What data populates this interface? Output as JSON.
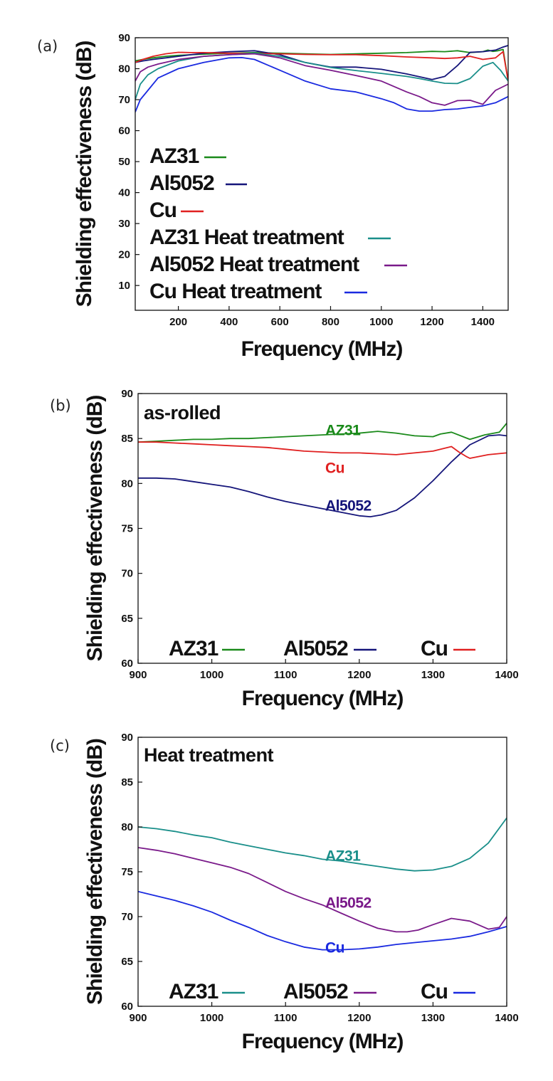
{
  "chart_data": [
    {
      "type": "line",
      "panel_label": "(a)",
      "title": "",
      "xlabel": "Frequency (MHz)",
      "ylabel": "Shielding effectiveness (dB)",
      "xlim": [
        30,
        1500
      ],
      "ylim": [
        2,
        90
      ],
      "xticks": [
        200,
        400,
        600,
        800,
        1000,
        1200,
        1400
      ],
      "yticks": [
        10,
        20,
        30,
        40,
        50,
        60,
        70,
        80,
        90
      ],
      "grid": false,
      "legend_position": "left",
      "series": [
        {
          "name": "AZ31",
          "color": "#1a8a1a",
          "x": [
            30,
            60,
            100,
            150,
            200,
            250,
            300,
            400,
            500,
            600,
            700,
            800,
            900,
            1000,
            1100,
            1200,
            1250,
            1300,
            1350,
            1400,
            1420,
            1440,
            1460,
            1480,
            1500
          ],
          "y": [
            82.5,
            83,
            83.5,
            84,
            84.3,
            84.5,
            84.7,
            85,
            85.2,
            85,
            84.8,
            84.6,
            84.8,
            85,
            85.2,
            85.6,
            85.5,
            85.8,
            85.2,
            85.5,
            86,
            85.6,
            85.8,
            86.2,
            76
          ]
        },
        {
          "name": "Al5052",
          "color": "#15157a",
          "x": [
            30,
            60,
            100,
            150,
            200,
            250,
            300,
            400,
            500,
            600,
            700,
            800,
            900,
            1000,
            1100,
            1200,
            1250,
            1300,
            1350,
            1400,
            1450,
            1480,
            1500
          ],
          "y": [
            82,
            82.5,
            83,
            83.5,
            84,
            84.5,
            85,
            85.5,
            85.8,
            84.5,
            82,
            80.5,
            80.5,
            79.8,
            78.3,
            76.5,
            77.5,
            81,
            85.3,
            85.5,
            86,
            87,
            87.5
          ]
        },
        {
          "name": "Cu",
          "color": "#e02020",
          "x": [
            30,
            60,
            100,
            150,
            200,
            250,
            300,
            400,
            500,
            600,
            700,
            800,
            900,
            1000,
            1100,
            1200,
            1250,
            1300,
            1350,
            1400,
            1450,
            1480,
            1500
          ],
          "y": [
            82,
            83,
            84,
            84.8,
            85.3,
            85.2,
            85.2,
            85,
            84.9,
            84.8,
            84.6,
            84.5,
            84.5,
            84.2,
            83.8,
            83.5,
            83.3,
            83.5,
            84,
            83,
            83.5,
            85.5,
            76
          ]
        },
        {
          "name": "AZ31 Heat treatment",
          "color": "#1a8f8a",
          "x": [
            30,
            50,
            80,
            120,
            200,
            300,
            400,
            500,
            600,
            700,
            800,
            900,
            1000,
            1100,
            1150,
            1200,
            1250,
            1300,
            1350,
            1400,
            1440,
            1470,
            1500
          ],
          "y": [
            70,
            75,
            78,
            80,
            82.5,
            84,
            84.5,
            85,
            84,
            82,
            80.4,
            79.4,
            78.5,
            77.5,
            76.8,
            76,
            75.3,
            75.2,
            76.8,
            80.8,
            82,
            79.5,
            76
          ]
        },
        {
          "name": "Al5052 Heat treatment",
          "color": "#7a1a8a",
          "x": [
            30,
            50,
            80,
            120,
            200,
            300,
            400,
            500,
            600,
            700,
            800,
            900,
            1000,
            1100,
            1150,
            1200,
            1250,
            1300,
            1350,
            1400,
            1450,
            1500
          ],
          "y": [
            76,
            79,
            80.5,
            81.5,
            83,
            84,
            84.5,
            84.8,
            83.5,
            81,
            79.5,
            77.8,
            76,
            72.5,
            71,
            69,
            68.2,
            69.7,
            69.8,
            68.5,
            73,
            75
          ]
        },
        {
          "name": "Cu Heat treatment",
          "color": "#1a2ae0",
          "x": [
            30,
            50,
            80,
            120,
            200,
            300,
            400,
            450,
            500,
            600,
            700,
            800,
            900,
            1000,
            1050,
            1100,
            1150,
            1200,
            1250,
            1300,
            1350,
            1400,
            1450,
            1500
          ],
          "y": [
            66,
            70,
            73,
            77,
            80,
            82,
            83.5,
            83.6,
            83,
            79.5,
            76,
            73.5,
            72.5,
            70.3,
            69,
            67,
            66.3,
            66.3,
            66.8,
            67,
            67.5,
            68,
            69,
            71
          ]
        }
      ]
    },
    {
      "type": "line",
      "panel_label": "(b)",
      "title": "as-rolled",
      "xlabel": "Frequency (MHz)",
      "ylabel": "Shielding effectiveness (dB)",
      "xlim": [
        900,
        1400
      ],
      "ylim": [
        60,
        90
      ],
      "xticks": [
        900,
        1000,
        1100,
        1200,
        1300,
        1400
      ],
      "yticks": [
        60,
        65,
        70,
        75,
        80,
        85,
        90
      ],
      "grid": false,
      "legend_position": "bottom",
      "series": [
        {
          "name": "AZ31",
          "color": "#1a8a1a",
          "inline_label": "AZ31",
          "x": [
            900,
            925,
            950,
            975,
            1000,
            1025,
            1050,
            1075,
            1100,
            1125,
            1150,
            1175,
            1200,
            1225,
            1250,
            1275,
            1300,
            1310,
            1325,
            1350,
            1370,
            1390,
            1400
          ],
          "y": [
            84.6,
            84.7,
            84.8,
            84.9,
            84.9,
            85,
            85,
            85.1,
            85.2,
            85.3,
            85.4,
            85.5,
            85.6,
            85.8,
            85.6,
            85.3,
            85.2,
            85.5,
            85.7,
            84.9,
            85.4,
            85.7,
            86.7
          ]
        },
        {
          "name": "Al5052",
          "color": "#15157a",
          "inline_label": "Al5052",
          "x": [
            900,
            925,
            950,
            975,
            1000,
            1025,
            1050,
            1075,
            1100,
            1125,
            1150,
            1175,
            1200,
            1215,
            1230,
            1250,
            1275,
            1300,
            1325,
            1350,
            1375,
            1390,
            1400
          ],
          "y": [
            80.6,
            80.6,
            80.5,
            80.2,
            79.9,
            79.6,
            79.1,
            78.5,
            78,
            77.6,
            77.2,
            76.8,
            76.4,
            76.3,
            76.5,
            77,
            78.4,
            80.3,
            82.4,
            84.3,
            85.3,
            85.4,
            85.3
          ]
        },
        {
          "name": "Cu",
          "color": "#e02020",
          "inline_label": "Cu",
          "x": [
            900,
            925,
            950,
            975,
            1000,
            1025,
            1050,
            1075,
            1100,
            1125,
            1150,
            1175,
            1200,
            1225,
            1250,
            1275,
            1300,
            1325,
            1335,
            1345,
            1350,
            1375,
            1400
          ],
          "y": [
            84.6,
            84.6,
            84.5,
            84.4,
            84.3,
            84.2,
            84.1,
            84,
            83.8,
            83.6,
            83.5,
            83.4,
            83.4,
            83.3,
            83.2,
            83.4,
            83.6,
            84.1,
            83.5,
            83,
            82.8,
            83.2,
            83.4
          ]
        }
      ]
    },
    {
      "type": "line",
      "panel_label": "(c)",
      "title": "Heat treatment",
      "xlabel": "Frequency (MHz)",
      "ylabel": "Shielding effectiveness (dB)",
      "xlim": [
        900,
        1400
      ],
      "ylim": [
        60,
        90
      ],
      "xticks": [
        900,
        1000,
        1100,
        1200,
        1300,
        1400
      ],
      "yticks": [
        60,
        65,
        70,
        75,
        80,
        85,
        90
      ],
      "grid": false,
      "legend_position": "bottom",
      "series": [
        {
          "name": "AZ31",
          "color": "#1a8f8a",
          "inline_label": "AZ31",
          "x": [
            900,
            925,
            950,
            975,
            1000,
            1025,
            1050,
            1075,
            1100,
            1125,
            1150,
            1175,
            1200,
            1225,
            1250,
            1275,
            1300,
            1325,
            1350,
            1375,
            1400
          ],
          "y": [
            80,
            79.8,
            79.5,
            79.1,
            78.8,
            78.3,
            77.9,
            77.5,
            77.1,
            76.8,
            76.4,
            76.2,
            75.9,
            75.6,
            75.3,
            75.1,
            75.2,
            75.6,
            76.5,
            78.2,
            81
          ]
        },
        {
          "name": "Al5052",
          "color": "#7a1a8a",
          "inline_label": "Al5052",
          "x": [
            900,
            925,
            950,
            975,
            1000,
            1025,
            1050,
            1075,
            1100,
            1125,
            1150,
            1175,
            1200,
            1225,
            1250,
            1265,
            1280,
            1300,
            1325,
            1350,
            1375,
            1390,
            1400
          ],
          "y": [
            77.7,
            77.4,
            77,
            76.5,
            76,
            75.5,
            74.8,
            73.8,
            72.8,
            72,
            71.3,
            70.4,
            69.5,
            68.7,
            68.3,
            68.3,
            68.5,
            69.1,
            69.8,
            69.5,
            68.6,
            68.8,
            70
          ]
        },
        {
          "name": "Cu",
          "color": "#1a2ae0",
          "inline_label": "Cu",
          "x": [
            900,
            925,
            950,
            975,
            1000,
            1025,
            1050,
            1075,
            1100,
            1125,
            1150,
            1175,
            1200,
            1225,
            1250,
            1275,
            1300,
            1325,
            1350,
            1375,
            1400
          ],
          "y": [
            72.8,
            72.3,
            71.8,
            71.2,
            70.5,
            69.6,
            68.8,
            67.9,
            67.2,
            66.6,
            66.3,
            66.3,
            66.4,
            66.6,
            66.9,
            67.1,
            67.3,
            67.5,
            67.8,
            68.3,
            68.9
          ]
        }
      ]
    }
  ]
}
